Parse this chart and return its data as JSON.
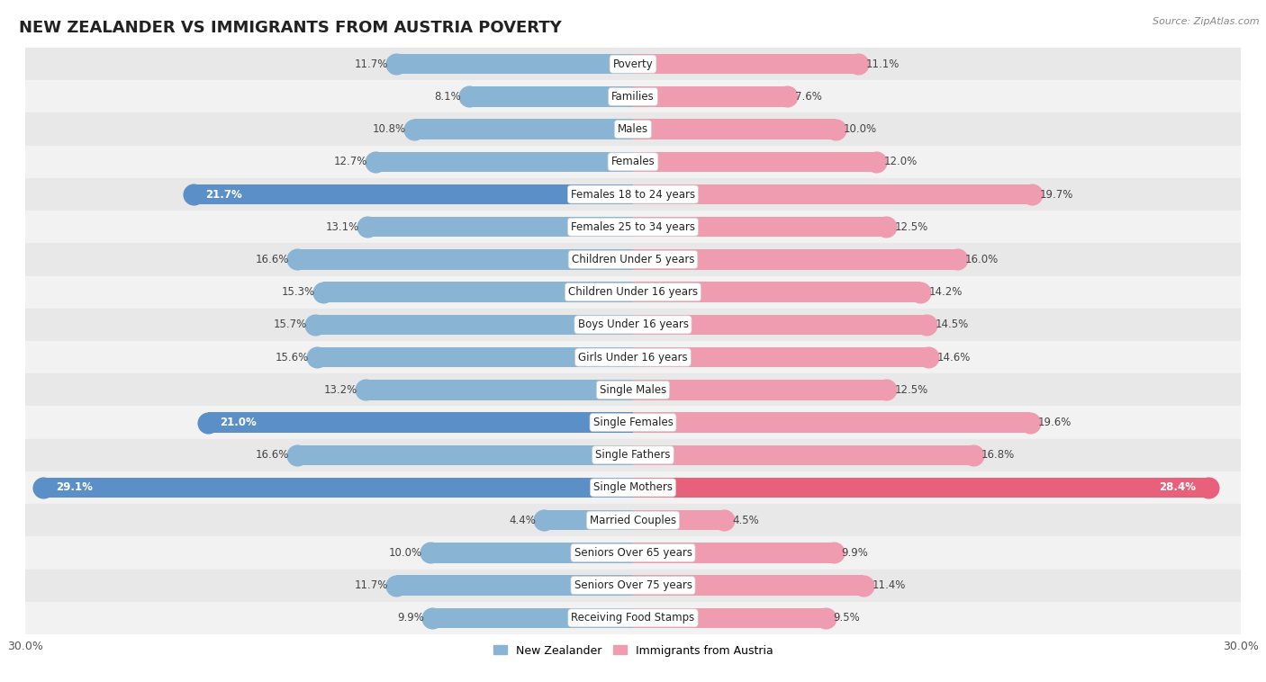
{
  "title": "NEW ZEALANDER VS IMMIGRANTS FROM AUSTRIA POVERTY",
  "source": "Source: ZipAtlas.com",
  "categories": [
    "Poverty",
    "Families",
    "Males",
    "Females",
    "Females 18 to 24 years",
    "Females 25 to 34 years",
    "Children Under 5 years",
    "Children Under 16 years",
    "Boys Under 16 years",
    "Girls Under 16 years",
    "Single Males",
    "Single Females",
    "Single Fathers",
    "Single Mothers",
    "Married Couples",
    "Seniors Over 65 years",
    "Seniors Over 75 years",
    "Receiving Food Stamps"
  ],
  "left_values": [
    11.7,
    8.1,
    10.8,
    12.7,
    21.7,
    13.1,
    16.6,
    15.3,
    15.7,
    15.6,
    13.2,
    21.0,
    16.6,
    29.1,
    4.4,
    10.0,
    11.7,
    9.9
  ],
  "right_values": [
    11.1,
    7.6,
    10.0,
    12.0,
    19.7,
    12.5,
    16.0,
    14.2,
    14.5,
    14.6,
    12.5,
    19.6,
    16.8,
    28.4,
    4.5,
    9.9,
    11.4,
    9.5
  ],
  "left_color_normal": "#8ab4d4",
  "left_color_highlight": "#5b8fc7",
  "right_color_normal": "#f09cb0",
  "right_color_highlight": "#e8607a",
  "highlight_threshold": 20.0,
  "x_max": 30.0,
  "x_tick_label": "30.0%",
  "background_color": "#ffffff",
  "row_bg_dark": "#e8e8e8",
  "row_bg_light": "#f2f2f2",
  "bar_height": 0.62,
  "label_fontsize": 8.5,
  "value_fontsize": 8.5,
  "title_fontsize": 13,
  "legend_label_left": "New Zealander",
  "legend_label_right": "Immigrants from Austria"
}
